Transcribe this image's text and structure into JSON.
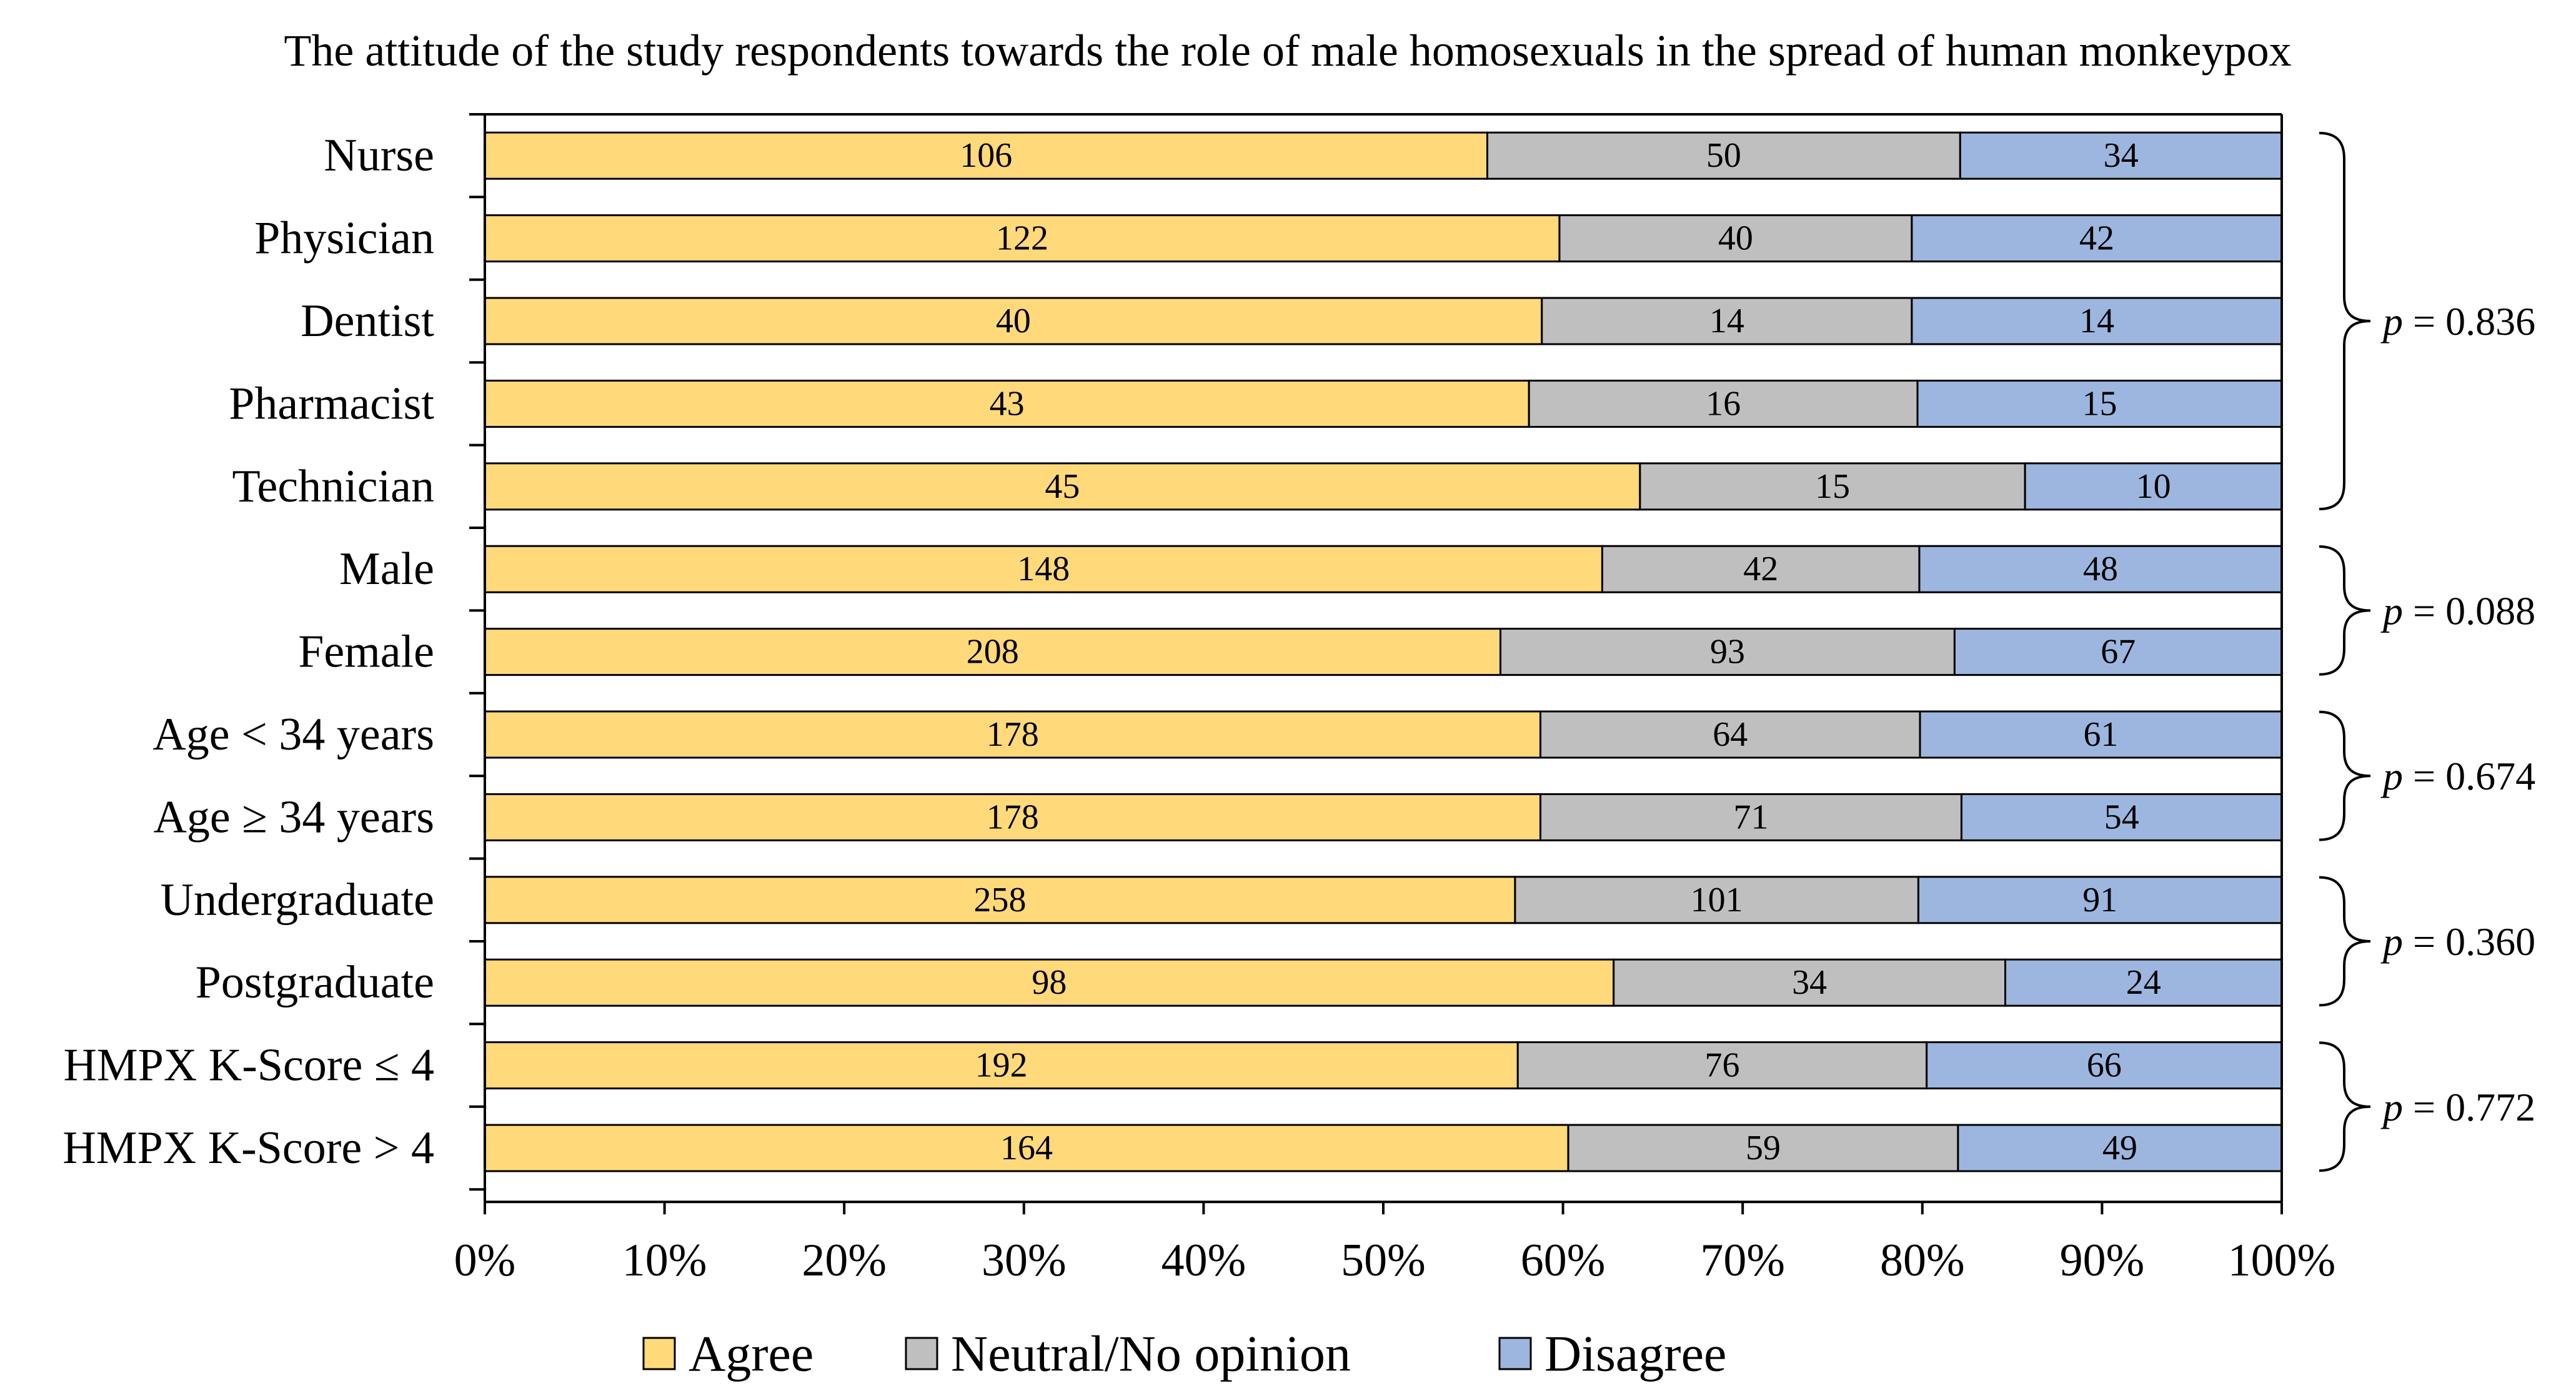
{
  "chart_data": {
    "type": "bar",
    "orientation": "horizontal",
    "stacked": "percent",
    "title": "The attitude of the study respondents towards the role of male homosexuals in the spread of human monkeypox",
    "categories": [
      "Nurse",
      "Physician",
      "Dentist",
      "Pharmacist",
      "Technician",
      "Male",
      "Female",
      "Age < 34 years",
      "Age ≥ 34 years",
      "Undergraduate",
      "Postgraduate",
      "HMPX K-Score ≤ 4",
      "HMPX K-Score > 4"
    ],
    "series": [
      {
        "name": "Agree",
        "color": "#FFD97A",
        "values": [
          106,
          122,
          40,
          43,
          45,
          148,
          208,
          178,
          178,
          258,
          98,
          192,
          164
        ]
      },
      {
        "name": "Neutral/No opinion",
        "color": "#BFBFBF",
        "values": [
          50,
          40,
          14,
          16,
          15,
          42,
          93,
          64,
          71,
          101,
          34,
          76,
          59
        ]
      },
      {
        "name": "Disagree",
        "color": "#9DB6DF",
        "values": [
          34,
          42,
          14,
          15,
          10,
          48,
          67,
          61,
          54,
          91,
          24,
          66,
          49
        ]
      }
    ],
    "xlim": [
      0,
      100
    ],
    "xticks": [
      "0%",
      "10%",
      "20%",
      "30%",
      "40%",
      "50%",
      "60%",
      "70%",
      "80%",
      "90%",
      "100%"
    ],
    "xlabel": "",
    "ylabel": "",
    "legend_position": "bottom",
    "annotations": [
      {
        "label_prefix": "p",
        "label_value": " = 0.836",
        "from_category": 0,
        "to_category": 4
      },
      {
        "label_prefix": "p",
        "label_value": " = 0.088",
        "from_category": 5,
        "to_category": 6
      },
      {
        "label_prefix": "p",
        "label_value": " = 0.674",
        "from_category": 7,
        "to_category": 8
      },
      {
        "label_prefix": "p",
        "label_value": " = 0.360",
        "from_category": 9,
        "to_category": 10
      },
      {
        "label_prefix": "p",
        "label_value": " = 0.772",
        "from_category": 11,
        "to_category": 12
      }
    ]
  }
}
